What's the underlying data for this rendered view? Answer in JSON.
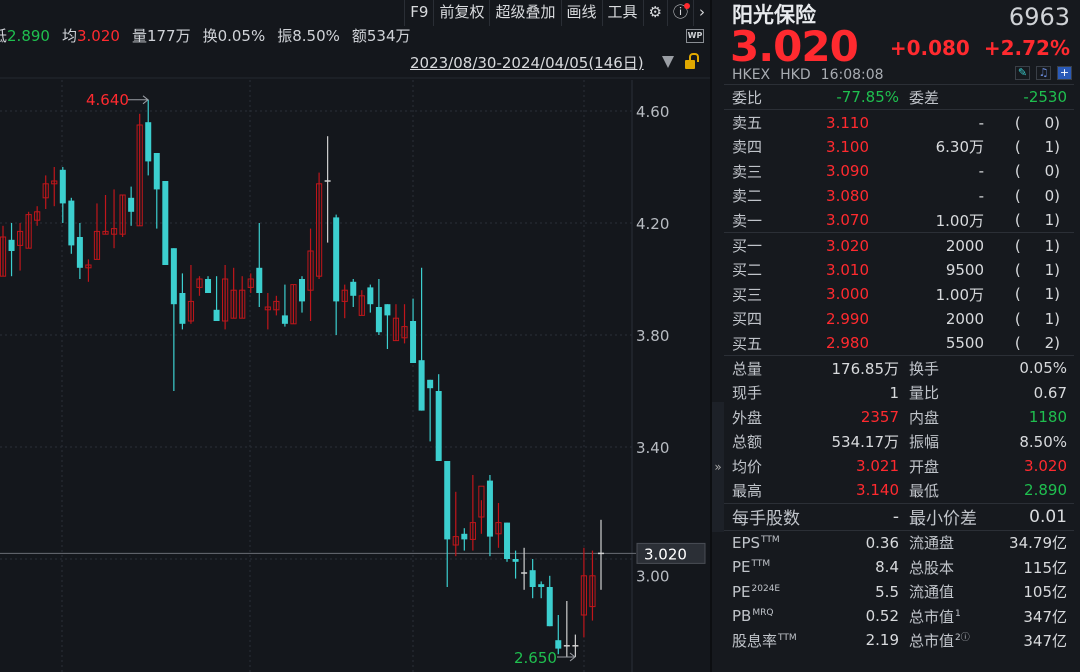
{
  "toolbar": {
    "items": [
      "F9",
      "前复权",
      "超级叠加",
      "画线",
      "工具"
    ],
    "icons": [
      "gear-icon",
      "help-icon",
      "chevron-right-icon"
    ]
  },
  "info": {
    "low_label": "低",
    "low": "2.890",
    "avg_label": "均",
    "avg": "3.020",
    "vol": "量177万",
    "turnover": "换0.05%",
    "amp": "振8.50%",
    "amount": "额534万"
  },
  "date_range": "2023/08/30-2024/04/05(146日)",
  "wp_label": "WP",
  "colors": {
    "up": "#c0161b",
    "down": "#3ccfcf",
    "flat": "#d0d0d0",
    "red": "#ff2a2f",
    "green": "#1fbf4f"
  },
  "chart_data": {
    "type": "candlestick",
    "y_ticks": [
      "4.60",
      "4.20",
      "3.80",
      "3.40",
      "3.00"
    ],
    "ylim": [
      2.6,
      4.7
    ],
    "max_label": "4.640",
    "min_label": "2.650",
    "last_price_label": "3.020",
    "last_price": 3.02,
    "candles_ohlc": [
      [
        4.01,
        4.19,
        4.01,
        4.15
      ],
      [
        4.14,
        4.2,
        4.01,
        4.1
      ],
      [
        4.12,
        4.2,
        4.03,
        4.17
      ],
      [
        4.11,
        4.24,
        4.11,
        4.23
      ],
      [
        4.21,
        4.26,
        4.19,
        4.24
      ],
      [
        4.29,
        4.37,
        4.25,
        4.34
      ],
      [
        4.34,
        4.4,
        4.26,
        4.35
      ],
      [
        4.39,
        4.4,
        4.2,
        4.27
      ],
      [
        4.28,
        4.29,
        4.09,
        4.12
      ],
      [
        4.15,
        4.2,
        4.0,
        4.04
      ],
      [
        4.04,
        4.07,
        3.99,
        4.05
      ],
      [
        4.07,
        4.27,
        4.07,
        4.17
      ],
      [
        4.16,
        4.3,
        4.16,
        4.17
      ],
      [
        4.16,
        4.32,
        4.11,
        4.18
      ],
      [
        4.16,
        4.3,
        4.15,
        4.3
      ],
      [
        4.29,
        4.33,
        4.19,
        4.24
      ],
      [
        4.19,
        4.59,
        4.19,
        4.55
      ],
      [
        4.56,
        4.64,
        4.37,
        4.42
      ],
      [
        4.45,
        4.45,
        4.18,
        4.32
      ],
      [
        4.35,
        4.35,
        4.05,
        4.05
      ],
      [
        4.11,
        4.11,
        3.6,
        3.91
      ],
      [
        3.95,
        4.02,
        3.82,
        3.84
      ],
      [
        3.85,
        4.05,
        3.84,
        3.92
      ],
      [
        3.97,
        4.01,
        3.94,
        4.0
      ],
      [
        4.0,
        4.01,
        3.95,
        3.95
      ],
      [
        3.89,
        4.01,
        3.85,
        3.85
      ],
      [
        3.85,
        4.05,
        3.82,
        4.0
      ],
      [
        3.86,
        4.04,
        3.86,
        3.96
      ],
      [
        3.86,
        4.01,
        3.86,
        3.96
      ],
      [
        3.97,
        4.02,
        3.95,
        4.0
      ],
      [
        4.04,
        4.2,
        3.9,
        3.95
      ],
      [
        3.89,
        3.95,
        3.82,
        3.9
      ],
      [
        3.89,
        3.94,
        3.87,
        3.92
      ],
      [
        3.87,
        3.98,
        3.83,
        3.84
      ],
      [
        3.84,
        3.98,
        3.84,
        3.98
      ],
      [
        4.0,
        4.01,
        3.88,
        3.92
      ],
      [
        3.96,
        4.18,
        3.85,
        4.1
      ],
      [
        4.01,
        4.38,
        4.0,
        4.34
      ],
      [
        4.35,
        4.51,
        4.13,
        4.35
      ],
      [
        4.22,
        4.23,
        3.8,
        3.92
      ],
      [
        3.92,
        3.98,
        3.86,
        3.96
      ],
      [
        3.99,
        4.0,
        3.9,
        3.94
      ],
      [
        3.87,
        3.96,
        3.87,
        3.94
      ],
      [
        3.97,
        3.98,
        3.88,
        3.91
      ],
      [
        3.9,
        4.0,
        3.8,
        3.81
      ],
      [
        3.91,
        3.91,
        3.75,
        3.87
      ],
      [
        3.78,
        3.91,
        3.78,
        3.86
      ],
      [
        3.79,
        3.91,
        3.77,
        3.83
      ],
      [
        3.85,
        3.93,
        3.7,
        3.7
      ],
      [
        3.71,
        4.04,
        3.53,
        3.53
      ],
      [
        3.64,
        3.64,
        3.42,
        3.61
      ],
      [
        3.6,
        3.66,
        3.35,
        3.35
      ],
      [
        3.35,
        3.35,
        2.9,
        3.07
      ],
      [
        3.05,
        3.24,
        3.01,
        3.08
      ],
      [
        3.09,
        3.11,
        3.03,
        3.07
      ],
      [
        3.07,
        3.3,
        3.03,
        3.13
      ],
      [
        3.15,
        3.21,
        3.09,
        3.26
      ],
      [
        3.28,
        3.3,
        3.01,
        3.08
      ],
      [
        3.09,
        3.2,
        3.04,
        3.13
      ],
      [
        3.13,
        3.13,
        2.99,
        3.0
      ],
      [
        3.0,
        3.03,
        2.93,
        2.99
      ],
      [
        2.95,
        3.04,
        2.89,
        2.95
      ],
      [
        2.96,
        3.0,
        2.86,
        2.9
      ],
      [
        2.91,
        2.92,
        2.86,
        2.9
      ],
      [
        2.9,
        2.94,
        2.76,
        2.76
      ],
      [
        2.71,
        2.8,
        2.66,
        2.68
      ],
      [
        2.69,
        2.85,
        2.65,
        2.69
      ],
      [
        2.69,
        2.73,
        2.65,
        2.69
      ],
      [
        2.8,
        3.04,
        2.72,
        2.94
      ],
      [
        2.83,
        3.03,
        2.78,
        2.94
      ],
      [
        3.02,
        3.14,
        2.89,
        3.02
      ]
    ]
  },
  "quote": {
    "name": "阳光保险",
    "code": "6963",
    "price": "3.020",
    "change": "+0.080",
    "change_pct": "+2.72%",
    "exchange": "HKEX",
    "currency": "HKD",
    "time": "16:08:08",
    "weibi_label": "委比",
    "weibi": "-77.85%",
    "weicha_label": "委差",
    "weicha": "-2530"
  },
  "orderbook": [
    {
      "label": "卖五",
      "price": "3.110",
      "vol": "-",
      "count": "(     0)"
    },
    {
      "label": "卖四",
      "price": "3.100",
      "vol": "6.30万",
      "count": "(     1)"
    },
    {
      "label": "卖三",
      "price": "3.090",
      "vol": "-",
      "count": "(     0)"
    },
    {
      "label": "卖二",
      "price": "3.080",
      "vol": "-",
      "count": "(     0)"
    },
    {
      "label": "卖一",
      "price": "3.070",
      "vol": "1.00万",
      "count": "(     1)"
    },
    {
      "label": "买一",
      "price": "3.020",
      "vol": "2000",
      "count": "(     1)"
    },
    {
      "label": "买二",
      "price": "3.010",
      "vol": "9500",
      "count": "(     1)"
    },
    {
      "label": "买三",
      "price": "3.000",
      "vol": "1.00万",
      "count": "(     1)"
    },
    {
      "label": "买四",
      "price": "2.990",
      "vol": "2000",
      "count": "(     1)"
    },
    {
      "label": "买五",
      "price": "2.980",
      "vol": "5500",
      "count": "(     2)"
    }
  ],
  "stats": [
    {
      "l1": "总量",
      "v1": "176.85万",
      "l2": "换手",
      "v2": "0.05%"
    },
    {
      "l1": "现手",
      "v1": "1",
      "l2": "量比",
      "v2": "0.67"
    },
    {
      "l1": "外盘",
      "v1": "2357",
      "l2": "内盘",
      "v2": "1180"
    },
    {
      "l1": "总额",
      "v1": "534.17万",
      "l2": "振幅",
      "v2": "8.50%"
    },
    {
      "l1": "均价",
      "v1": "3.021",
      "l2": "开盘",
      "v2": "3.020"
    },
    {
      "l1": "最高",
      "v1": "3.140",
      "l2": "最低",
      "v2": "2.890"
    }
  ],
  "lot": {
    "l1": "每手股数",
    "v1": "-",
    "l2": "最小价差",
    "v2": "0.01"
  },
  "fundamentals": [
    {
      "l1": "EPS",
      "sup": "TTM",
      "v1": "0.36",
      "l2": "流通盘",
      "sup2": "",
      "v2": "34.79亿"
    },
    {
      "l1": "PE",
      "sup": "TTM",
      "v1": "8.4",
      "l2": "总股本",
      "sup2": "",
      "v2": "115亿"
    },
    {
      "l1": "PE",
      "sup": "2024E",
      "v1": "5.5",
      "l2": "流通值",
      "sup2": "",
      "v2": "105亿"
    },
    {
      "l1": "PB",
      "sup": "MRQ",
      "v1": "0.52",
      "l2": "总市值",
      "sup2": "1",
      "v2": "347亿"
    },
    {
      "l1": "股息率",
      "sup": "TTM",
      "v1": "2.19",
      "l2": "总市值",
      "sup2": "2ⓘ",
      "v2": "347亿"
    }
  ]
}
